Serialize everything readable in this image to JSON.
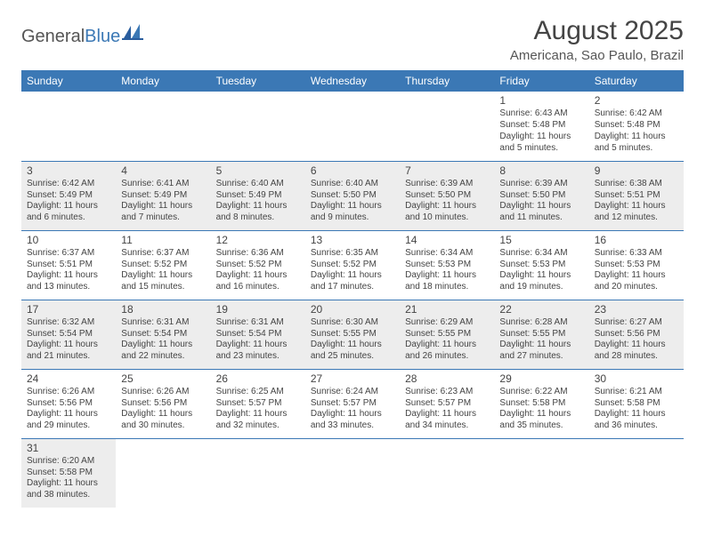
{
  "brand": {
    "part1": "General",
    "part2": "Blue"
  },
  "title": "August 2025",
  "subtitle": "Americana, Sao Paulo, Brazil",
  "header_bg": "#3b78b5",
  "shade_bg": "#ededed",
  "border_color": "#3b78b5",
  "text_color": "#444444",
  "columns": [
    "Sunday",
    "Monday",
    "Tuesday",
    "Wednesday",
    "Thursday",
    "Friday",
    "Saturday"
  ],
  "weeks": [
    {
      "shade": false,
      "days": [
        null,
        null,
        null,
        null,
        null,
        {
          "n": "1",
          "sunrise": "Sunrise: 6:43 AM",
          "sunset": "Sunset: 5:48 PM",
          "day1": "Daylight: 11 hours",
          "day2": "and 5 minutes."
        },
        {
          "n": "2",
          "sunrise": "Sunrise: 6:42 AM",
          "sunset": "Sunset: 5:48 PM",
          "day1": "Daylight: 11 hours",
          "day2": "and 5 minutes."
        }
      ]
    },
    {
      "shade": true,
      "days": [
        {
          "n": "3",
          "sunrise": "Sunrise: 6:42 AM",
          "sunset": "Sunset: 5:49 PM",
          "day1": "Daylight: 11 hours",
          "day2": "and 6 minutes."
        },
        {
          "n": "4",
          "sunrise": "Sunrise: 6:41 AM",
          "sunset": "Sunset: 5:49 PM",
          "day1": "Daylight: 11 hours",
          "day2": "and 7 minutes."
        },
        {
          "n": "5",
          "sunrise": "Sunrise: 6:40 AM",
          "sunset": "Sunset: 5:49 PM",
          "day1": "Daylight: 11 hours",
          "day2": "and 8 minutes."
        },
        {
          "n": "6",
          "sunrise": "Sunrise: 6:40 AM",
          "sunset": "Sunset: 5:50 PM",
          "day1": "Daylight: 11 hours",
          "day2": "and 9 minutes."
        },
        {
          "n": "7",
          "sunrise": "Sunrise: 6:39 AM",
          "sunset": "Sunset: 5:50 PM",
          "day1": "Daylight: 11 hours",
          "day2": "and 10 minutes."
        },
        {
          "n": "8",
          "sunrise": "Sunrise: 6:39 AM",
          "sunset": "Sunset: 5:50 PM",
          "day1": "Daylight: 11 hours",
          "day2": "and 11 minutes."
        },
        {
          "n": "9",
          "sunrise": "Sunrise: 6:38 AM",
          "sunset": "Sunset: 5:51 PM",
          "day1": "Daylight: 11 hours",
          "day2": "and 12 minutes."
        }
      ]
    },
    {
      "shade": false,
      "days": [
        {
          "n": "10",
          "sunrise": "Sunrise: 6:37 AM",
          "sunset": "Sunset: 5:51 PM",
          "day1": "Daylight: 11 hours",
          "day2": "and 13 minutes."
        },
        {
          "n": "11",
          "sunrise": "Sunrise: 6:37 AM",
          "sunset": "Sunset: 5:52 PM",
          "day1": "Daylight: 11 hours",
          "day2": "and 15 minutes."
        },
        {
          "n": "12",
          "sunrise": "Sunrise: 6:36 AM",
          "sunset": "Sunset: 5:52 PM",
          "day1": "Daylight: 11 hours",
          "day2": "and 16 minutes."
        },
        {
          "n": "13",
          "sunrise": "Sunrise: 6:35 AM",
          "sunset": "Sunset: 5:52 PM",
          "day1": "Daylight: 11 hours",
          "day2": "and 17 minutes."
        },
        {
          "n": "14",
          "sunrise": "Sunrise: 6:34 AM",
          "sunset": "Sunset: 5:53 PM",
          "day1": "Daylight: 11 hours",
          "day2": "and 18 minutes."
        },
        {
          "n": "15",
          "sunrise": "Sunrise: 6:34 AM",
          "sunset": "Sunset: 5:53 PM",
          "day1": "Daylight: 11 hours",
          "day2": "and 19 minutes."
        },
        {
          "n": "16",
          "sunrise": "Sunrise: 6:33 AM",
          "sunset": "Sunset: 5:53 PM",
          "day1": "Daylight: 11 hours",
          "day2": "and 20 minutes."
        }
      ]
    },
    {
      "shade": true,
      "days": [
        {
          "n": "17",
          "sunrise": "Sunrise: 6:32 AM",
          "sunset": "Sunset: 5:54 PM",
          "day1": "Daylight: 11 hours",
          "day2": "and 21 minutes."
        },
        {
          "n": "18",
          "sunrise": "Sunrise: 6:31 AM",
          "sunset": "Sunset: 5:54 PM",
          "day1": "Daylight: 11 hours",
          "day2": "and 22 minutes."
        },
        {
          "n": "19",
          "sunrise": "Sunrise: 6:31 AM",
          "sunset": "Sunset: 5:54 PM",
          "day1": "Daylight: 11 hours",
          "day2": "and 23 minutes."
        },
        {
          "n": "20",
          "sunrise": "Sunrise: 6:30 AM",
          "sunset": "Sunset: 5:55 PM",
          "day1": "Daylight: 11 hours",
          "day2": "and 25 minutes."
        },
        {
          "n": "21",
          "sunrise": "Sunrise: 6:29 AM",
          "sunset": "Sunset: 5:55 PM",
          "day1": "Daylight: 11 hours",
          "day2": "and 26 minutes."
        },
        {
          "n": "22",
          "sunrise": "Sunrise: 6:28 AM",
          "sunset": "Sunset: 5:55 PM",
          "day1": "Daylight: 11 hours",
          "day2": "and 27 minutes."
        },
        {
          "n": "23",
          "sunrise": "Sunrise: 6:27 AM",
          "sunset": "Sunset: 5:56 PM",
          "day1": "Daylight: 11 hours",
          "day2": "and 28 minutes."
        }
      ]
    },
    {
      "shade": false,
      "days": [
        {
          "n": "24",
          "sunrise": "Sunrise: 6:26 AM",
          "sunset": "Sunset: 5:56 PM",
          "day1": "Daylight: 11 hours",
          "day2": "and 29 minutes."
        },
        {
          "n": "25",
          "sunrise": "Sunrise: 6:26 AM",
          "sunset": "Sunset: 5:56 PM",
          "day1": "Daylight: 11 hours",
          "day2": "and 30 minutes."
        },
        {
          "n": "26",
          "sunrise": "Sunrise: 6:25 AM",
          "sunset": "Sunset: 5:57 PM",
          "day1": "Daylight: 11 hours",
          "day2": "and 32 minutes."
        },
        {
          "n": "27",
          "sunrise": "Sunrise: 6:24 AM",
          "sunset": "Sunset: 5:57 PM",
          "day1": "Daylight: 11 hours",
          "day2": "and 33 minutes."
        },
        {
          "n": "28",
          "sunrise": "Sunrise: 6:23 AM",
          "sunset": "Sunset: 5:57 PM",
          "day1": "Daylight: 11 hours",
          "day2": "and 34 minutes."
        },
        {
          "n": "29",
          "sunrise": "Sunrise: 6:22 AM",
          "sunset": "Sunset: 5:58 PM",
          "day1": "Daylight: 11 hours",
          "day2": "and 35 minutes."
        },
        {
          "n": "30",
          "sunrise": "Sunrise: 6:21 AM",
          "sunset": "Sunset: 5:58 PM",
          "day1": "Daylight: 11 hours",
          "day2": "and 36 minutes."
        }
      ]
    },
    {
      "shade": true,
      "last": true,
      "days": [
        {
          "n": "31",
          "sunrise": "Sunrise: 6:20 AM",
          "sunset": "Sunset: 5:58 PM",
          "day1": "Daylight: 11 hours",
          "day2": "and 38 minutes."
        },
        null,
        null,
        null,
        null,
        null,
        null
      ]
    }
  ]
}
